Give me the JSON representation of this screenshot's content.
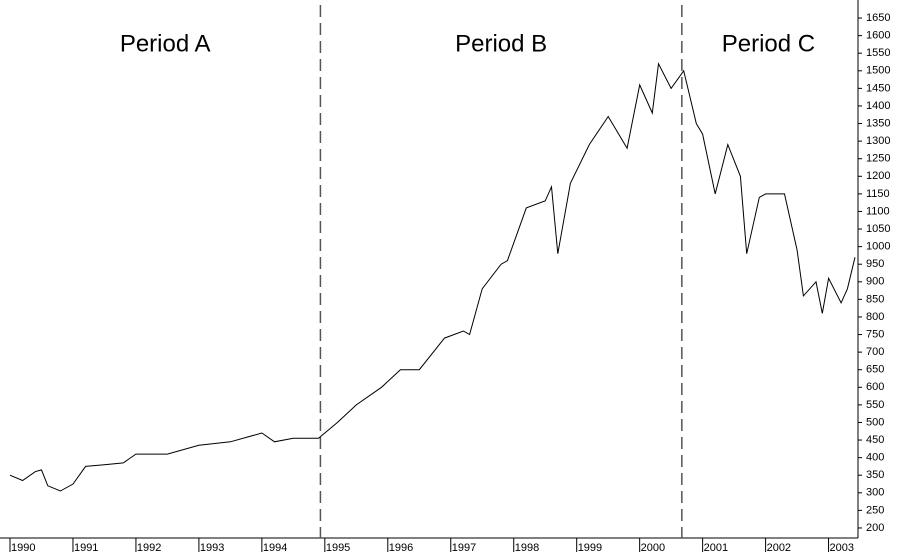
{
  "chart_data": {
    "type": "line",
    "annotations": [
      "Period A",
      "Period B",
      "Period C"
    ],
    "period_markers": [
      1994.93,
      2000.67
    ],
    "color": "#000000",
    "x": [
      1990.0,
      1990.2,
      1990.4,
      1990.5,
      1990.6,
      1990.8,
      1991.0,
      1991.2,
      1991.5,
      1991.8,
      1992.0,
      1992.5,
      1993.0,
      1993.5,
      1994.0,
      1994.2,
      1994.5,
      1994.9,
      1995.2,
      1995.5,
      1995.9,
      1996.2,
      1996.5,
      1996.9,
      1997.2,
      1997.3,
      1997.5,
      1997.8,
      1997.9,
      1998.2,
      1998.5,
      1998.6,
      1998.7,
      1998.9,
      1999.2,
      1999.5,
      1999.8,
      2000.0,
      2000.2,
      2000.3,
      2000.5,
      2000.7,
      2000.9,
      2001.0,
      2001.2,
      2001.4,
      2001.6,
      2001.7,
      2001.9,
      2002.0,
      2002.3,
      2002.5,
      2002.6,
      2002.8,
      2002.9,
      2003.0,
      2003.2,
      2003.3,
      2003.42
    ],
    "values": [
      350,
      335,
      360,
      365,
      320,
      305,
      325,
      375,
      380,
      385,
      410,
      410,
      435,
      445,
      470,
      445,
      455,
      455,
      500,
      550,
      600,
      650,
      650,
      740,
      760,
      750,
      880,
      950,
      960,
      1110,
      1130,
      1170,
      980,
      1180,
      1290,
      1370,
      1280,
      1460,
      1380,
      1520,
      1450,
      1500,
      1350,
      1320,
      1150,
      1290,
      1200,
      980,
      1140,
      1150,
      1150,
      990,
      860,
      900,
      810,
      910,
      840,
      880,
      970
    ],
    "xlim": [
      1990,
      2003.42
    ],
    "xticks": [
      1990,
      1991,
      1992,
      1993,
      1994,
      1995,
      1996,
      1997,
      1998,
      1999,
      2000,
      2001,
      2002,
      2003
    ],
    "ylim": [
      180,
      1670
    ],
    "yticks": [
      200,
      250,
      300,
      350,
      400,
      450,
      500,
      550,
      600,
      650,
      700,
      750,
      800,
      850,
      900,
      950,
      1000,
      1050,
      1100,
      1150,
      1200,
      1250,
      1300,
      1350,
      1400,
      1450,
      1500,
      1550,
      1600,
      1650
    ],
    "grid": false
  }
}
